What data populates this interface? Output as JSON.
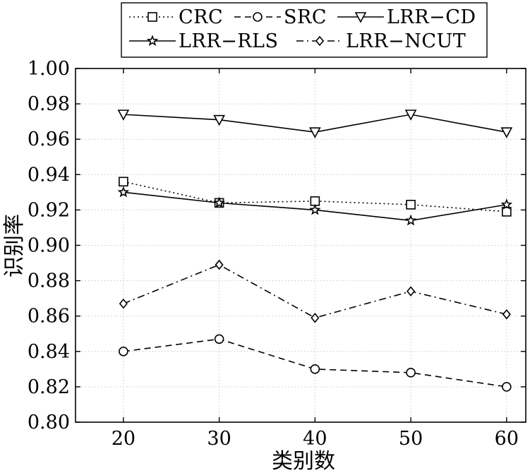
{
  "chart_data": {
    "type": "line",
    "title": "",
    "xlabel": "类别数",
    "ylabel": "识别率",
    "x": [
      20,
      30,
      40,
      50,
      60
    ],
    "xticks": [
      "20",
      "30",
      "40",
      "50",
      "60"
    ],
    "yticks": [
      "0.80",
      "0.82",
      "0.84",
      "0.86",
      "0.88",
      "0.90",
      "0.92",
      "0.94",
      "0.96",
      "0.98",
      "1.00"
    ],
    "xlim": [
      15,
      62
    ],
    "ylim": [
      0.8,
      1.0
    ],
    "grid": true,
    "legend_position": "top",
    "series": [
      {
        "name": "CRC",
        "marker": "square",
        "linestyle": "dotted",
        "values": [
          0.936,
          0.924,
          0.925,
          0.923,
          0.919
        ]
      },
      {
        "name": "SRC",
        "marker": "circle",
        "linestyle": "dashed",
        "values": [
          0.84,
          0.847,
          0.83,
          0.828,
          0.82
        ]
      },
      {
        "name": "LRR−CD",
        "marker": "triangle-down",
        "linestyle": "solid",
        "values": [
          0.974,
          0.971,
          0.964,
          0.974,
          0.964
        ]
      },
      {
        "name": "LRR−RLS",
        "marker": "star",
        "linestyle": "solid",
        "values": [
          0.93,
          0.924,
          0.92,
          0.914,
          0.923
        ]
      },
      {
        "name": "LRR−NCUT",
        "marker": "diamond",
        "linestyle": "dashdot",
        "values": [
          0.867,
          0.889,
          0.859,
          0.874,
          0.861
        ]
      }
    ]
  }
}
